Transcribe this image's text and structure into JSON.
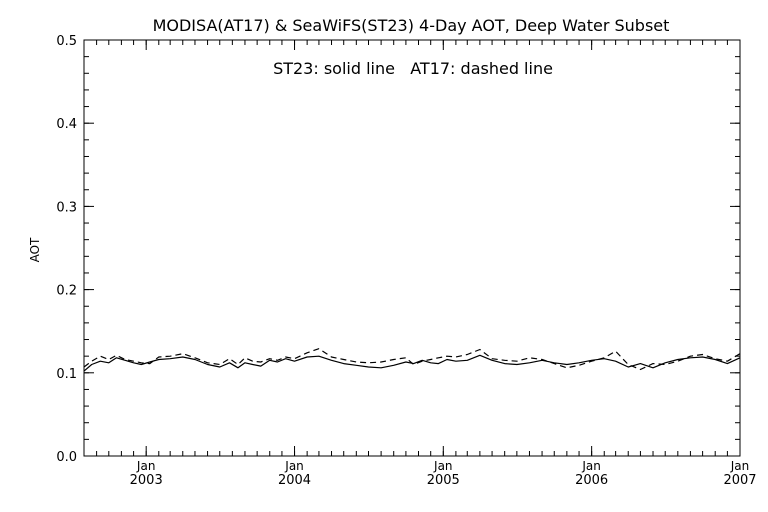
{
  "chart_data": {
    "type": "line",
    "title": "MODISA(AT17) & SeaWiFS(ST23) 4-Day AOT, Deep Water Subset",
    "annotation": "ST23: solid line   AT17: dashed line",
    "xlabel": "",
    "ylabel": "AOT",
    "xlim": [
      "2002-08-01",
      "2007-01-01"
    ],
    "ylim": [
      0.0,
      0.5
    ],
    "yticks": [
      0.0,
      0.1,
      0.2,
      0.3,
      0.4,
      0.5
    ],
    "ytick_labels": [
      "0.0",
      "0.1",
      "0.2",
      "0.3",
      "0.4",
      "0.5"
    ],
    "xticks": [
      {
        "date": "2003-01-01",
        "month": "Jan",
        "year": "2003"
      },
      {
        "date": "2004-01-01",
        "month": "Jan",
        "year": "2004"
      },
      {
        "date": "2005-01-01",
        "month": "Jan",
        "year": "2005"
      },
      {
        "date": "2006-01-01",
        "month": "Jan",
        "year": "2006"
      },
      {
        "date": "2007-01-01",
        "month": "Jan",
        "year": "2007"
      }
    ],
    "grid": false,
    "series": [
      {
        "name": "ST23",
        "style": "solid",
        "color": "#000000",
        "x": [
          "2002-08-01",
          "2002-08-20",
          "2002-09-10",
          "2002-10-01",
          "2002-10-20",
          "2002-11-10",
          "2002-12-01",
          "2002-12-20",
          "2003-01-10",
          "2003-02-01",
          "2003-03-01",
          "2003-04-01",
          "2003-05-01",
          "2003-06-01",
          "2003-07-01",
          "2003-07-25",
          "2003-08-15",
          "2003-09-01",
          "2003-09-20",
          "2003-10-10",
          "2003-11-01",
          "2003-11-20",
          "2003-12-10",
          "2004-01-01",
          "2004-02-01",
          "2004-03-01",
          "2004-04-01",
          "2004-05-01",
          "2004-06-01",
          "2004-07-01",
          "2004-08-01",
          "2004-09-01",
          "2004-10-01",
          "2004-10-20",
          "2004-11-10",
          "2004-12-01",
          "2004-12-20",
          "2005-01-10",
          "2005-02-01",
          "2005-03-01",
          "2005-04-01",
          "2005-05-01",
          "2005-06-01",
          "2005-07-01",
          "2005-08-01",
          "2005-09-01",
          "2005-10-01",
          "2005-11-01",
          "2005-12-01",
          "2006-01-01",
          "2006-02-01",
          "2006-03-01",
          "2006-04-01",
          "2006-05-01",
          "2006-06-01",
          "2006-07-01",
          "2006-08-01",
          "2006-09-01",
          "2006-10-01",
          "2006-11-01",
          "2006-12-01",
          "2007-01-01"
        ],
        "values": [
          0.102,
          0.11,
          0.114,
          0.112,
          0.118,
          0.115,
          0.112,
          0.11,
          0.113,
          0.116,
          0.117,
          0.119,
          0.116,
          0.11,
          0.107,
          0.112,
          0.106,
          0.112,
          0.11,
          0.108,
          0.115,
          0.113,
          0.117,
          0.114,
          0.119,
          0.12,
          0.115,
          0.111,
          0.109,
          0.107,
          0.106,
          0.109,
          0.113,
          0.111,
          0.115,
          0.112,
          0.111,
          0.116,
          0.114,
          0.115,
          0.121,
          0.115,
          0.111,
          0.11,
          0.112,
          0.115,
          0.112,
          0.11,
          0.112,
          0.115,
          0.117,
          0.114,
          0.107,
          0.111,
          0.106,
          0.112,
          0.116,
          0.118,
          0.119,
          0.116,
          0.111,
          0.118
        ]
      },
      {
        "name": "AT17",
        "style": "dashed",
        "color": "#000000",
        "x": [
          "2002-08-01",
          "2002-08-20",
          "2002-09-10",
          "2002-10-01",
          "2002-10-20",
          "2002-11-10",
          "2002-12-01",
          "2002-12-20",
          "2003-01-10",
          "2003-02-01",
          "2003-03-01",
          "2003-04-01",
          "2003-05-01",
          "2003-06-01",
          "2003-07-01",
          "2003-07-25",
          "2003-08-15",
          "2003-09-01",
          "2003-09-20",
          "2003-10-10",
          "2003-11-01",
          "2003-11-20",
          "2003-12-10",
          "2004-01-01",
          "2004-02-01",
          "2004-03-01",
          "2004-04-01",
          "2004-05-01",
          "2004-06-01",
          "2004-07-01",
          "2004-08-01",
          "2004-09-01",
          "2004-10-01",
          "2004-10-20",
          "2004-11-10",
          "2004-12-01",
          "2004-12-20",
          "2005-01-10",
          "2005-02-01",
          "2005-03-01",
          "2005-04-01",
          "2005-05-01",
          "2005-06-01",
          "2005-07-01",
          "2005-08-01",
          "2005-09-01",
          "2005-10-01",
          "2005-11-01",
          "2005-12-01",
          "2006-01-01",
          "2006-02-01",
          "2006-03-01",
          "2006-04-01",
          "2006-05-01",
          "2006-06-01",
          "2006-07-01",
          "2006-08-01",
          "2006-09-01",
          "2006-10-01",
          "2006-11-01",
          "2006-12-01",
          "2007-01-01"
        ],
        "values": [
          0.107,
          0.114,
          0.12,
          0.116,
          0.121,
          0.116,
          0.114,
          0.112,
          0.111,
          0.119,
          0.12,
          0.123,
          0.118,
          0.112,
          0.11,
          0.117,
          0.11,
          0.118,
          0.114,
          0.113,
          0.117,
          0.115,
          0.119,
          0.117,
          0.124,
          0.129,
          0.119,
          0.116,
          0.113,
          0.112,
          0.113,
          0.116,
          0.118,
          0.11,
          0.114,
          0.116,
          0.118,
          0.12,
          0.119,
          0.122,
          0.128,
          0.117,
          0.115,
          0.114,
          0.118,
          0.116,
          0.111,
          0.106,
          0.109,
          0.114,
          0.118,
          0.126,
          0.11,
          0.104,
          0.111,
          0.11,
          0.114,
          0.12,
          0.122,
          0.117,
          0.114,
          0.123
        ]
      }
    ]
  }
}
